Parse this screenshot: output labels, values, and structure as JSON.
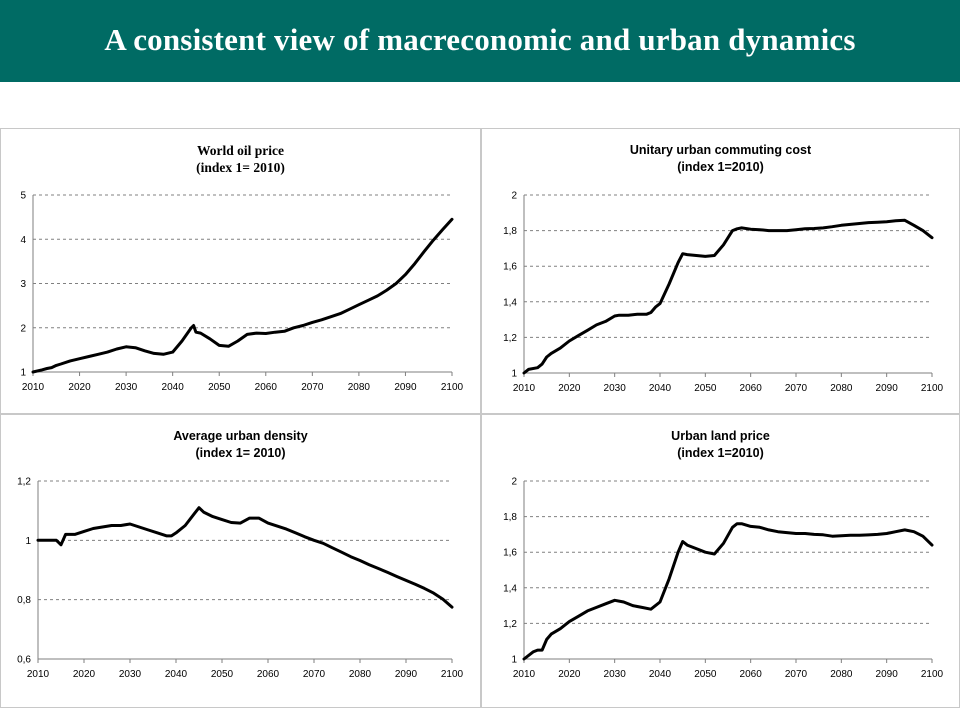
{
  "page": {
    "title": "A consistent view of macreconomic and urban dynamics"
  },
  "chart_data": [
    {
      "type": "line",
      "title": "World oil price",
      "subtitle": "(index 1= 2010)",
      "x_ticks": [
        "2010",
        "2020",
        "2030",
        "2040",
        "2050",
        "2060",
        "2070",
        "2080",
        "2090",
        "2100"
      ],
      "y_ticks": [
        "1",
        "2",
        "3",
        "4",
        "5"
      ],
      "ylim": [
        1,
        5
      ],
      "xlim": [
        2010,
        2100
      ],
      "grid": "horizontal-dashed",
      "x": [
        2010,
        2012,
        2013,
        2014,
        2015,
        2016,
        2018,
        2020,
        2022,
        2024,
        2026,
        2028,
        2030,
        2032,
        2034,
        2036,
        2038,
        2040,
        2042,
        2044,
        2044.5,
        2045,
        2046,
        2048,
        2050,
        2052,
        2054,
        2056,
        2058,
        2060,
        2062,
        2064,
        2066,
        2068,
        2070,
        2072,
        2074,
        2076,
        2078,
        2080,
        2082,
        2084,
        2086,
        2088,
        2090,
        2092,
        2094,
        2096,
        2098,
        2100
      ],
      "values": [
        1.0,
        1.05,
        1.08,
        1.1,
        1.15,
        1.18,
        1.25,
        1.3,
        1.35,
        1.4,
        1.45,
        1.52,
        1.57,
        1.55,
        1.48,
        1.42,
        1.4,
        1.45,
        1.7,
        2.0,
        2.05,
        1.9,
        1.88,
        1.75,
        1.6,
        1.58,
        1.7,
        1.85,
        1.88,
        1.87,
        1.9,
        1.92,
        2.0,
        2.05,
        2.12,
        2.18,
        2.25,
        2.32,
        2.42,
        2.52,
        2.62,
        2.72,
        2.85,
        3.0,
        3.2,
        3.45,
        3.72,
        3.98,
        4.22,
        4.45
      ]
    },
    {
      "type": "line",
      "title": "Unitary urban commuting cost",
      "subtitle": "(index 1=2010)",
      "x_ticks": [
        "2010",
        "2020",
        "2030",
        "2040",
        "2050",
        "2060",
        "2070",
        "2080",
        "2090",
        "2100"
      ],
      "y_ticks": [
        "1",
        "1,2",
        "1,4",
        "1,6",
        "1,8",
        "2"
      ],
      "ylim": [
        1,
        2
      ],
      "xlim": [
        2010,
        2100
      ],
      "grid": "horizontal-dashed",
      "x": [
        2010,
        2011,
        2013,
        2014,
        2015,
        2016,
        2018,
        2020,
        2022,
        2024,
        2026,
        2028,
        2030,
        2031,
        2033,
        2035,
        2037,
        2038,
        2039,
        2040,
        2042,
        2044,
        2045,
        2046,
        2048,
        2050,
        2052,
        2054,
        2056,
        2057,
        2058,
        2060,
        2062,
        2064,
        2066,
        2068,
        2070,
        2072,
        2074,
        2076,
        2078,
        2080,
        2082,
        2084,
        2086,
        2088,
        2090,
        2092,
        2094,
        2096,
        2098,
        2100
      ],
      "values": [
        1.0,
        1.02,
        1.03,
        1.05,
        1.09,
        1.11,
        1.14,
        1.18,
        1.21,
        1.24,
        1.27,
        1.29,
        1.32,
        1.325,
        1.325,
        1.33,
        1.33,
        1.34,
        1.37,
        1.39,
        1.5,
        1.62,
        1.67,
        1.665,
        1.66,
        1.655,
        1.66,
        1.72,
        1.8,
        1.81,
        1.815,
        1.808,
        1.805,
        1.8,
        1.8,
        1.8,
        1.805,
        1.81,
        1.812,
        1.815,
        1.822,
        1.83,
        1.835,
        1.84,
        1.845,
        1.847,
        1.85,
        1.855,
        1.858,
        1.83,
        1.8,
        1.76
      ]
    },
    {
      "type": "line",
      "title": "Average urban density",
      "subtitle": "(index 1= 2010)",
      "x_ticks": [
        "2010",
        "2020",
        "2030",
        "2040",
        "2050",
        "2060",
        "2070",
        "2080",
        "2090",
        "2100"
      ],
      "y_ticks": [
        "0,6",
        "0,8",
        "1",
        "1,2"
      ],
      "ylim": [
        0.6,
        1.2
      ],
      "xlim": [
        2010,
        2100
      ],
      "grid": "horizontal-dashed",
      "x": [
        2010,
        2012,
        2014,
        2015,
        2016,
        2018,
        2020,
        2022,
        2024,
        2026,
        2028,
        2030,
        2032,
        2034,
        2036,
        2038,
        2039,
        2040,
        2042,
        2044,
        2045,
        2046,
        2048,
        2050,
        2052,
        2054,
        2056,
        2058,
        2060,
        2062,
        2064,
        2066,
        2068,
        2070,
        2072,
        2074,
        2076,
        2078,
        2080,
        2082,
        2084,
        2086,
        2088,
        2090,
        2092,
        2094,
        2096,
        2098,
        2100
      ],
      "values": [
        1.0,
        1.0,
        1.0,
        0.985,
        1.02,
        1.02,
        1.03,
        1.04,
        1.045,
        1.05,
        1.05,
        1.055,
        1.045,
        1.035,
        1.025,
        1.015,
        1.015,
        1.025,
        1.05,
        1.09,
        1.11,
        1.095,
        1.08,
        1.07,
        1.06,
        1.058,
        1.075,
        1.075,
        1.058,
        1.048,
        1.038,
        1.025,
        1.012,
        1.0,
        0.99,
        0.975,
        0.96,
        0.945,
        0.932,
        0.918,
        0.905,
        0.892,
        0.878,
        0.865,
        0.852,
        0.838,
        0.822,
        0.802,
        0.775
      ]
    },
    {
      "type": "line",
      "title": "Urban land price",
      "subtitle": "(index 1=2010)",
      "x_ticks": [
        "2010",
        "2020",
        "2030",
        "2040",
        "2050",
        "2060",
        "2070",
        "2080",
        "2090",
        "2100"
      ],
      "y_ticks": [
        "1",
        "1,2",
        "1,4",
        "1,6",
        "1,8",
        "2"
      ],
      "ylim": [
        1,
        2
      ],
      "xlim": [
        2010,
        2100
      ],
      "grid": "horizontal-dashed",
      "x": [
        2010,
        2012,
        2013,
        2014,
        2015,
        2016,
        2018,
        2020,
        2022,
        2024,
        2026,
        2028,
        2030,
        2032,
        2034,
        2036,
        2038,
        2039,
        2040,
        2042,
        2044,
        2045,
        2046,
        2048,
        2050,
        2052,
        2054,
        2056,
        2057,
        2058,
        2060,
        2062,
        2064,
        2066,
        2068,
        2070,
        2072,
        2074,
        2076,
        2078,
        2080,
        2082,
        2084,
        2086,
        2088,
        2090,
        2092,
        2094,
        2096,
        2098,
        2100
      ],
      "values": [
        1.0,
        1.04,
        1.05,
        1.05,
        1.11,
        1.14,
        1.17,
        1.21,
        1.24,
        1.27,
        1.29,
        1.31,
        1.33,
        1.32,
        1.3,
        1.29,
        1.28,
        1.3,
        1.32,
        1.45,
        1.6,
        1.66,
        1.64,
        1.62,
        1.6,
        1.59,
        1.65,
        1.74,
        1.76,
        1.76,
        1.745,
        1.74,
        1.725,
        1.715,
        1.71,
        1.705,
        1.705,
        1.7,
        1.698,
        1.69,
        1.692,
        1.695,
        1.695,
        1.697,
        1.7,
        1.705,
        1.715,
        1.725,
        1.715,
        1.69,
        1.64
      ]
    }
  ]
}
